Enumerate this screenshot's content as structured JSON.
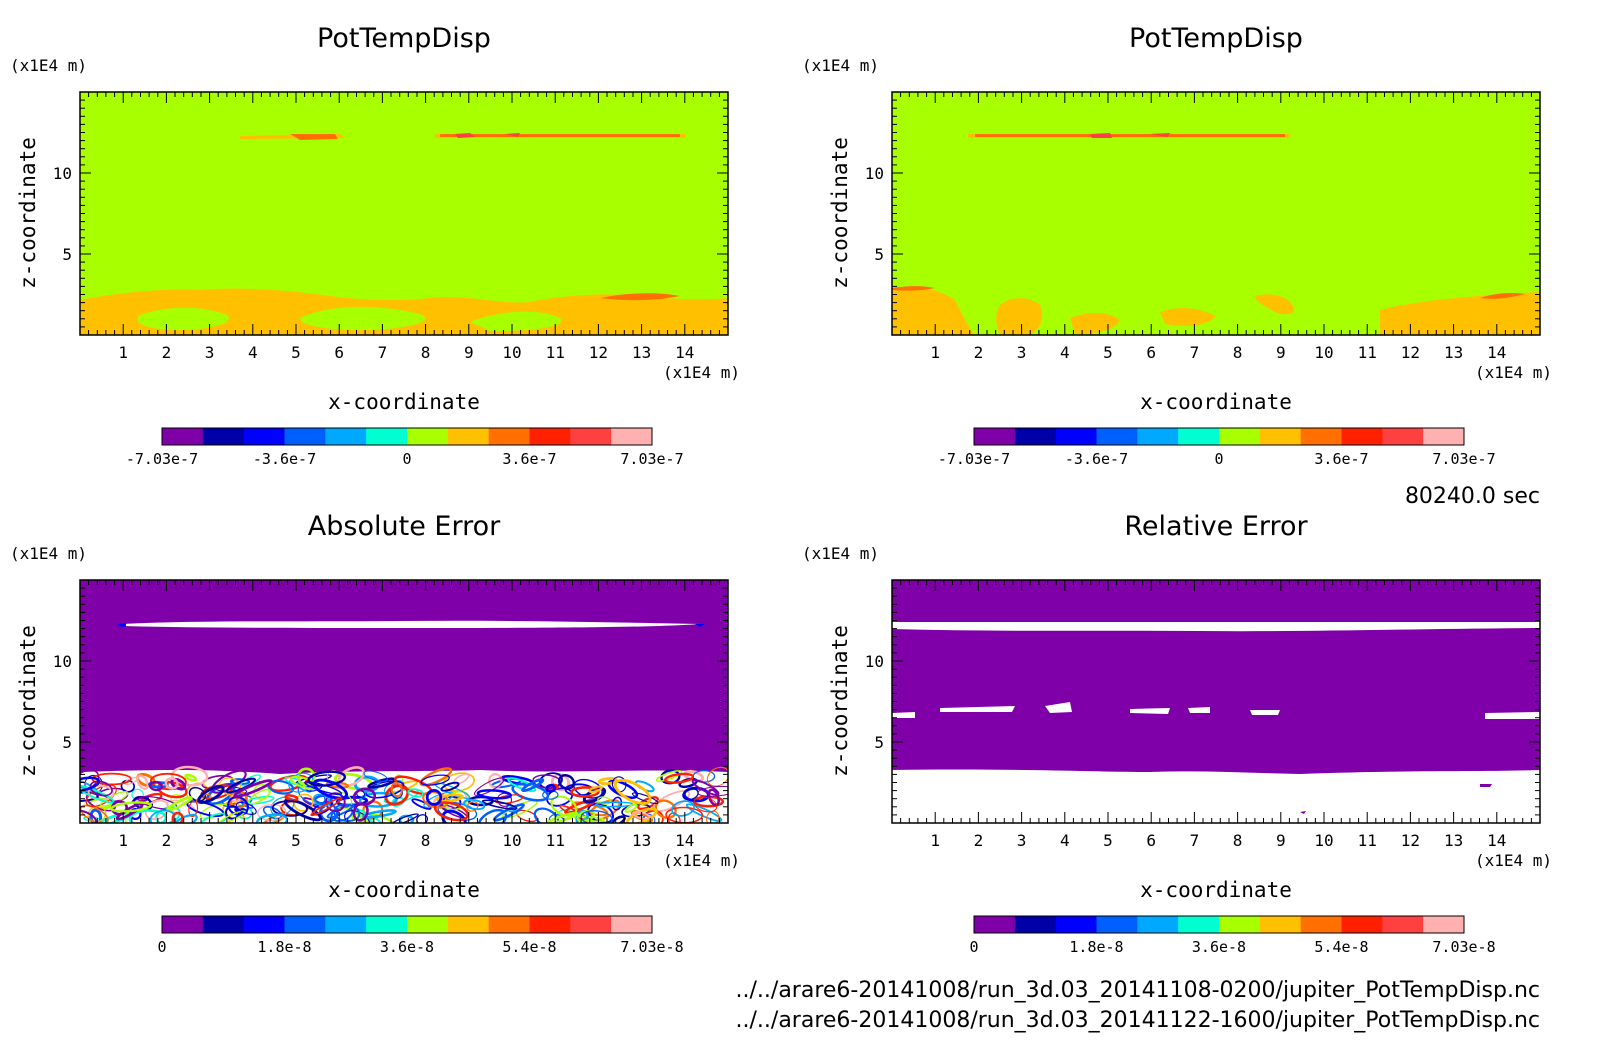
{
  "chart_data": [
    {
      "type": "heatmap",
      "title": "PotTempDisp",
      "xlabel": "x-coordinate",
      "ylabel": "z-coordinate",
      "x_unit": "(x1E4 m)",
      "y_unit": "(x1E4 m)",
      "xlim": [
        0,
        15
      ],
      "ylim": [
        0,
        15
      ],
      "x_ticks": [
        1,
        2,
        3,
        4,
        5,
        6,
        7,
        8,
        9,
        10,
        11,
        12,
        13,
        14
      ],
      "y_ticks": [
        5,
        10
      ],
      "colorbar_labels": [
        "-7.03e-7",
        "-3.6e-7",
        "0",
        "3.6e-7",
        "7.03e-7"
      ],
      "colorbar_range": [
        -7.03e-07,
        7.03e-07
      ],
      "background_color": "#a8ff00",
      "features": [
        {
          "kind": "positive displacement band",
          "z_range": [
            0,
            3
          ],
          "color": "#ffc000"
        },
        {
          "kind": "thin disturbance layer",
          "z": 12.2,
          "x_range": [
            3.7,
            14
          ],
          "color": "#ff7000"
        }
      ]
    },
    {
      "type": "heatmap",
      "title": "PotTempDisp",
      "xlabel": "x-coordinate",
      "ylabel": "z-coordinate",
      "x_unit": "(x1E4 m)",
      "y_unit": "(x1E4 m)",
      "xlim": [
        0,
        15
      ],
      "ylim": [
        0,
        15
      ],
      "x_ticks": [
        1,
        2,
        3,
        4,
        5,
        6,
        7,
        8,
        9,
        10,
        11,
        12,
        13,
        14
      ],
      "y_ticks": [
        5,
        10
      ],
      "colorbar_labels": [
        "-7.03e-7",
        "-3.6e-7",
        "0",
        "3.6e-7",
        "7.03e-7"
      ],
      "colorbar_range": [
        -7.03e-07,
        7.03e-07
      ],
      "background_color": "#a8ff00",
      "features": [
        {
          "kind": "positive displacement plumes",
          "z_range": [
            0,
            3
          ],
          "color": "#ffc000"
        },
        {
          "kind": "thin disturbance layer",
          "z": 12.2,
          "x_range": [
            1.8,
            9
          ],
          "color": "#ff7000"
        }
      ]
    },
    {
      "type": "heatmap",
      "title": "Absolute Error",
      "xlabel": "x-coordinate",
      "ylabel": "z-coordinate",
      "x_unit": "(x1E4 m)",
      "y_unit": "(x1E4 m)",
      "xlim": [
        0,
        15
      ],
      "ylim": [
        0,
        15
      ],
      "x_ticks": [
        1,
        2,
        3,
        4,
        5,
        6,
        7,
        8,
        9,
        10,
        11,
        12,
        13,
        14
      ],
      "y_ticks": [
        5,
        10
      ],
      "colorbar_labels": [
        "0",
        "1.8e-8",
        "3.6e-8",
        "5.4e-8",
        "7.03e-8"
      ],
      "colorbar_range": [
        0,
        7.03e-08
      ],
      "background_color": "#7f00a8",
      "features": [
        {
          "kind": "error band (exceeds scale)",
          "z": 12.2,
          "x_range": [
            1,
            14
          ],
          "color": "#ffffff"
        },
        {
          "kind": "turbulent error region",
          "z_range": [
            0,
            3.2
          ],
          "color": "mixed"
        }
      ]
    },
    {
      "type": "heatmap",
      "title": "Relative Error",
      "xlabel": "x-coordinate",
      "ylabel": "z-coordinate",
      "x_unit": "(x1E4 m)",
      "y_unit": "(x1E4 m)",
      "xlim": [
        0,
        15
      ],
      "ylim": [
        0,
        15
      ],
      "x_ticks": [
        1,
        2,
        3,
        4,
        5,
        6,
        7,
        8,
        9,
        10,
        11,
        12,
        13,
        14
      ],
      "y_ticks": [
        5,
        10
      ],
      "colorbar_labels": [
        "0",
        "1.8e-8",
        "3.6e-8",
        "5.4e-8",
        "7.03e-8"
      ],
      "colorbar_range": [
        0,
        7.03e-08
      ],
      "background_color": "#7f00a8",
      "features": [
        {
          "kind": "out-of-range band",
          "z": 12.2,
          "x_range": [
            0,
            15
          ],
          "color": "#ffffff"
        },
        {
          "kind": "out-of-range region",
          "z_range": [
            0,
            3.2
          ],
          "color": "#ffffff"
        }
      ]
    }
  ],
  "colormap": [
    "#7f00a8",
    "#0000a8",
    "#0000ff",
    "#0060ff",
    "#00a8ff",
    "#00ffd0",
    "#a8ff00",
    "#ffc000",
    "#ff7000",
    "#ff2000",
    "#ff4040",
    "#ffb0b0"
  ],
  "time_label": "80240.0 sec",
  "file_paths": [
    "../../arare6-20141008/run_3d.03_20141108-0200/jupiter_PotTempDisp.nc",
    "../../arare6-20141008/run_3d.03_20141122-1600/jupiter_PotTempDisp.nc"
  ]
}
